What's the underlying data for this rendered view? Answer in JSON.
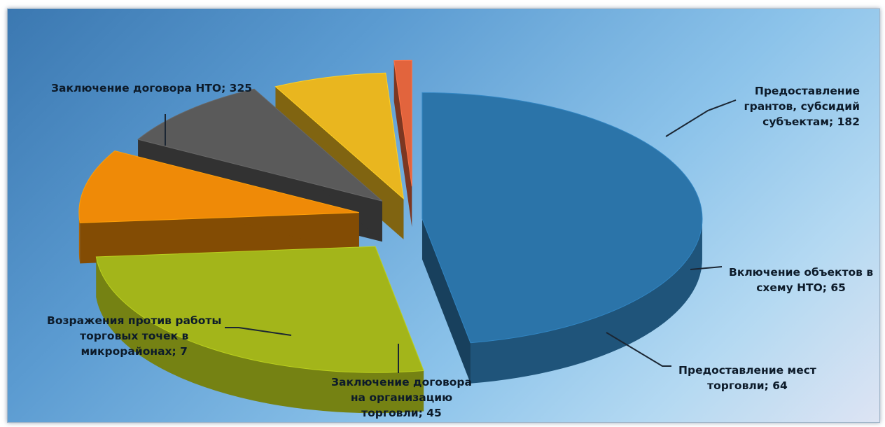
{
  "chart_data": {
    "type": "pie",
    "variant": "3d-exploded",
    "title": "",
    "data_labels": true,
    "label_format": "category; value",
    "slices": [
      {
        "label": "Заключение договора НТО",
        "value": 325,
        "color": "#2b74a9",
        "label_lines": [
          "Заключение договора НТО; 325"
        ]
      },
      {
        "label": "Предоставление грантов, субсидий субъектам",
        "value": 182,
        "color": "#a3b51a",
        "label_lines": [
          "Предоставление",
          "грантов, субсидий",
          "субъектам; 182"
        ]
      },
      {
        "label": "Включение объектов в схему НТО",
        "value": 65,
        "color": "#ef8a07",
        "label_lines": [
          "Включение объектов в",
          "схему НТО; 65"
        ]
      },
      {
        "label": "Предоставление мест торговли",
        "value": 64,
        "color": "#5a5a5a",
        "label_lines": [
          "Предоставление мест",
          "торговли; 64"
        ]
      },
      {
        "label": "Заключение договора на организацию торговли",
        "value": 45,
        "color": "#e9b61f",
        "label_lines": [
          "Заключение договора",
          "на организацию",
          "торговли; 45"
        ]
      },
      {
        "label": "Возражения против работы торговых точек в микрорайонах",
        "value": 7,
        "color": "#e2643d",
        "label_lines": [
          "Возражения против работы",
          "торговых точек в",
          "микрорайонах; 7"
        ]
      }
    ]
  }
}
